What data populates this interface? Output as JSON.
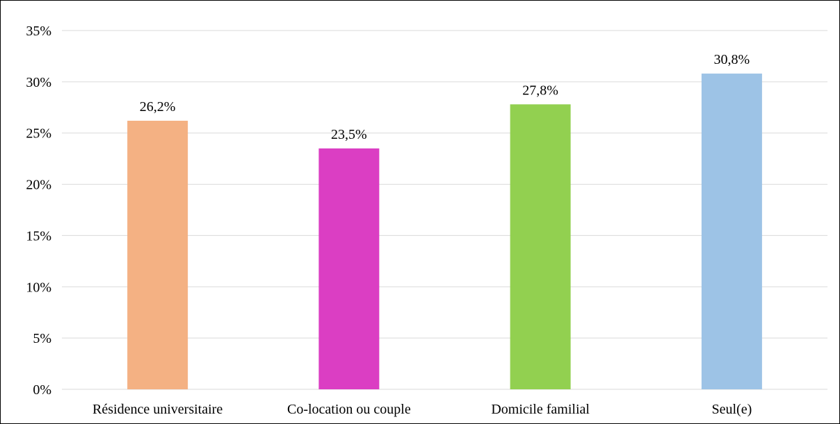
{
  "chart_data": {
    "type": "bar",
    "categories": [
      "Résidence universitaire",
      "Co-location ou couple",
      "Domicile familial",
      "Seul(e)"
    ],
    "values": [
      26.2,
      23.5,
      27.8,
      30.8
    ],
    "data_labels": [
      "26,2%",
      "23,5%",
      "27,8%",
      "30,8%"
    ],
    "bar_colors": [
      "#f4b183",
      "#db3ec3",
      "#92d050",
      "#9dc3e6"
    ],
    "ylim": [
      0,
      35
    ],
    "y_ticks": [
      0,
      5,
      10,
      15,
      20,
      25,
      30,
      35
    ],
    "y_tick_labels": [
      "0%",
      "5%",
      "10%",
      "15%",
      "20%",
      "25%",
      "30%",
      "35%"
    ],
    "grid": true,
    "gridline_color": "#d9d9d9",
    "title": "",
    "xlabel": "",
    "ylabel": ""
  }
}
